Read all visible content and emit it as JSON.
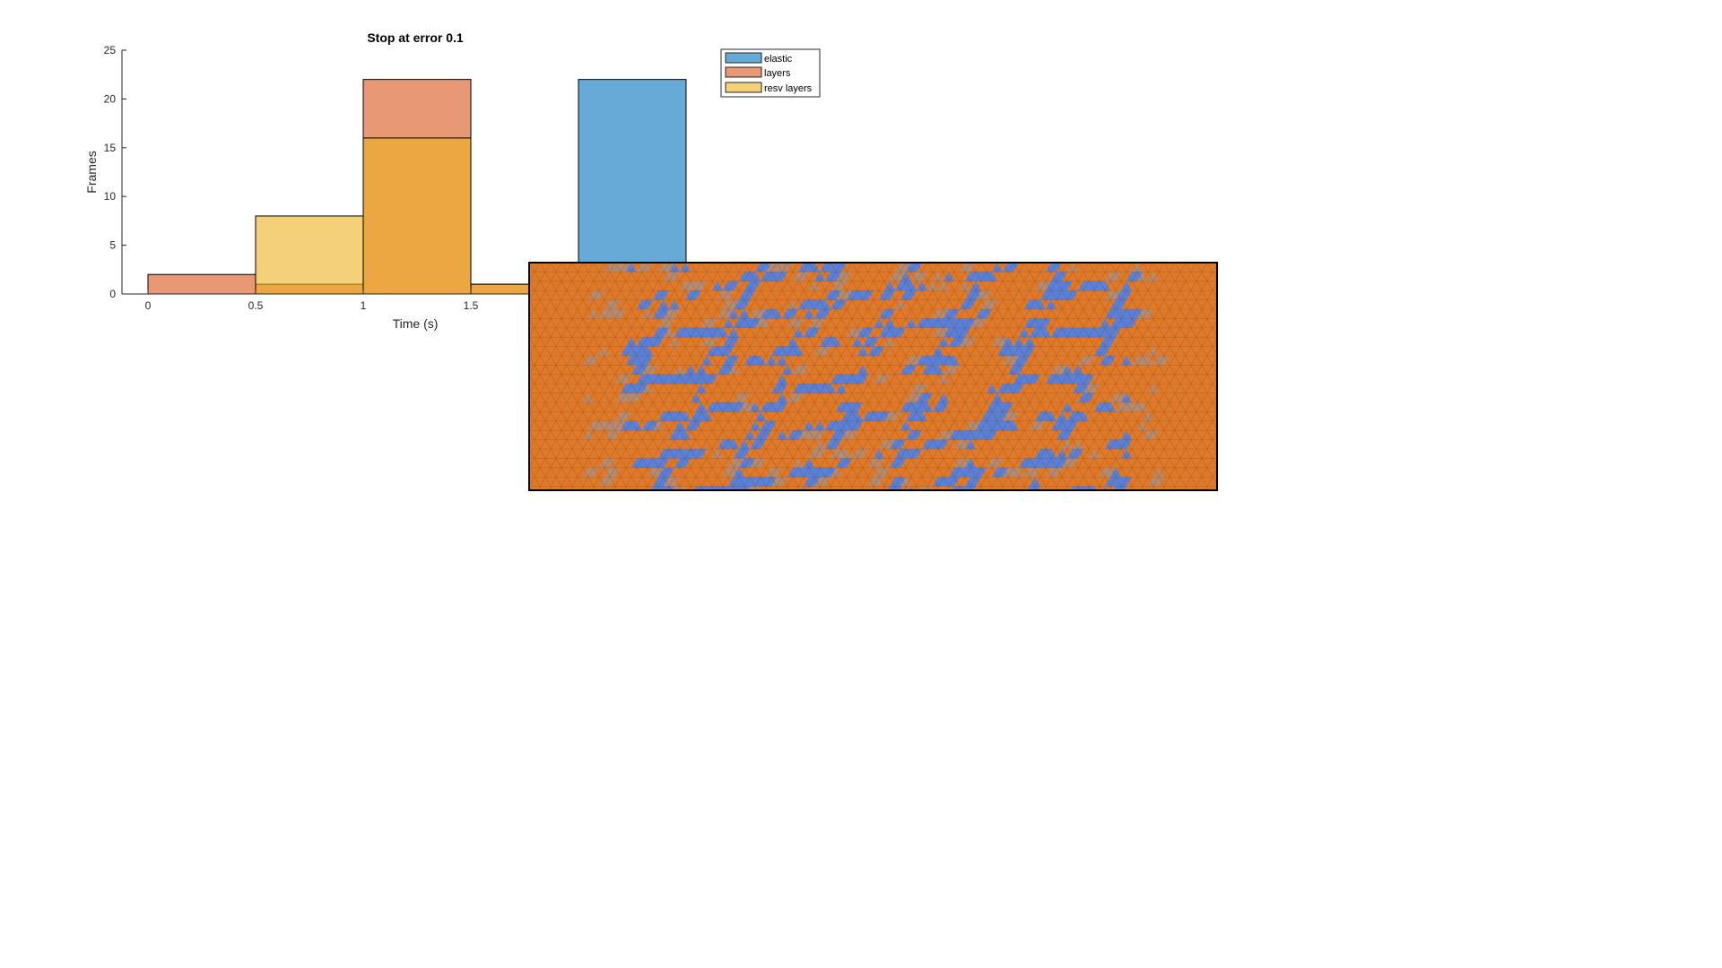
{
  "chart_data": {
    "type": "bar",
    "title": "Stop at error 0.1",
    "xlabel": "Time (s)",
    "ylabel": "Frames",
    "xlim": [
      -0.125,
      3.0
    ],
    "ylim": [
      0,
      25
    ],
    "xticks": [
      0,
      0.5,
      1,
      1.5
    ],
    "xtick_labels": [
      "0",
      "0.5",
      "1",
      "1.5"
    ],
    "yticks": [
      0,
      5,
      10,
      15,
      20,
      25
    ],
    "ytick_labels": [
      "0",
      "5",
      "10",
      "15",
      "20",
      "25"
    ],
    "bin_edges": [
      0,
      0.5,
      1,
      1.5,
      2,
      2.5
    ],
    "bar_opacity": 0.6,
    "legend_position": "top-right",
    "series": [
      {
        "name": "elastic",
        "color": "#0072BD",
        "values": [
          0,
          0,
          0,
          0,
          22
        ]
      },
      {
        "name": "layers",
        "color": "#D95319",
        "values": [
          2,
          1,
          22,
          1,
          0
        ]
      },
      {
        "name": "resv layers",
        "color": "#EDB120",
        "values": [
          0,
          8,
          16,
          1,
          0
        ]
      }
    ],
    "overlay": {
      "type": "triangular-mesh",
      "colors": {
        "base": "#E07A2A",
        "accent": "#5A80D8",
        "blend": "#B78A6E"
      }
    }
  }
}
